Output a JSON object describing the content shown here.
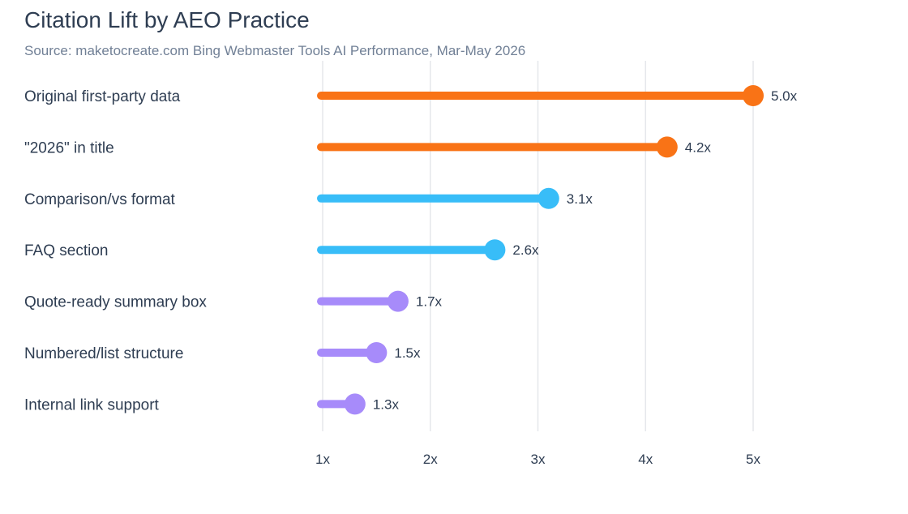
{
  "chart_data": {
    "type": "bar",
    "title": "Citation Lift by AEO Practice",
    "subtitle": "Source: maketocreate.com Bing Webmaster Tools AI Performance, Mar-May 2026",
    "xlabel": "",
    "ylabel": "",
    "xlim": [
      1,
      5
    ],
    "grid": true,
    "categories": [
      "Original first-party data",
      "\"2026\" in title",
      "Comparison/vs format",
      "FAQ section",
      "Quote-ready summary box",
      "Numbered/list structure",
      "Internal link support"
    ],
    "values": [
      5.0,
      4.2,
      3.1,
      2.6,
      1.7,
      1.5,
      1.3
    ],
    "value_labels": [
      "5.0x",
      "4.2x",
      "3.1x",
      "2.6x",
      "1.7x",
      "1.5x",
      "1.3x"
    ],
    "colors": [
      "#f97316",
      "#f97316",
      "#38bdf8",
      "#38bdf8",
      "#a78bfa",
      "#a78bfa",
      "#a78bfa"
    ],
    "x_ticks": [
      1,
      2,
      3,
      4,
      5
    ],
    "x_tick_labels": [
      "1x",
      "2x",
      "3x",
      "4x",
      "5x"
    ]
  }
}
